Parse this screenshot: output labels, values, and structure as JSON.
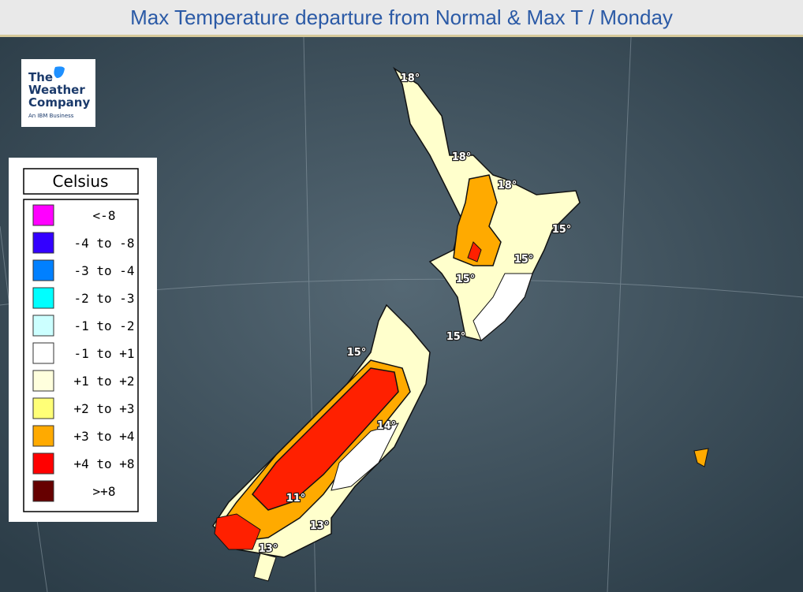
{
  "header": {
    "title": "Max Temperature departure from Normal & Max T / Monday"
  },
  "logo": {
    "lines": [
      "The",
      "Weather",
      "Company",
      "An IBM Business"
    ]
  },
  "legend": {
    "title": "Celsius",
    "items": [
      {
        "label": "<-8",
        "color": "#ff00ff"
      },
      {
        "label": "-4 to -8",
        "color": "#3300ff"
      },
      {
        "label": "-3 to -4",
        "color": "#0080ff"
      },
      {
        "label": "-2 to -3",
        "color": "#00ffff"
      },
      {
        "label": "-1 to -2",
        "color": "#ccffff"
      },
      {
        "label": "-1 to +1",
        "color": "#ffffff"
      },
      {
        "label": "+1 to +2",
        "color": "#ffffdd"
      },
      {
        "label": "+2 to +3",
        "color": "#ffff77"
      },
      {
        "label": "+3 to +4",
        "color": "#ffaa00"
      },
      {
        "label": "+4 to +8",
        "color": "#ff0000"
      },
      {
        "label": ">+8",
        "color": "#660000"
      }
    ]
  },
  "map_labels": [
    "18°",
    "18°",
    "18°",
    "15°",
    "15°",
    "15°",
    "15°",
    "15°",
    "14°",
    "11°",
    "13°",
    "13°"
  ]
}
